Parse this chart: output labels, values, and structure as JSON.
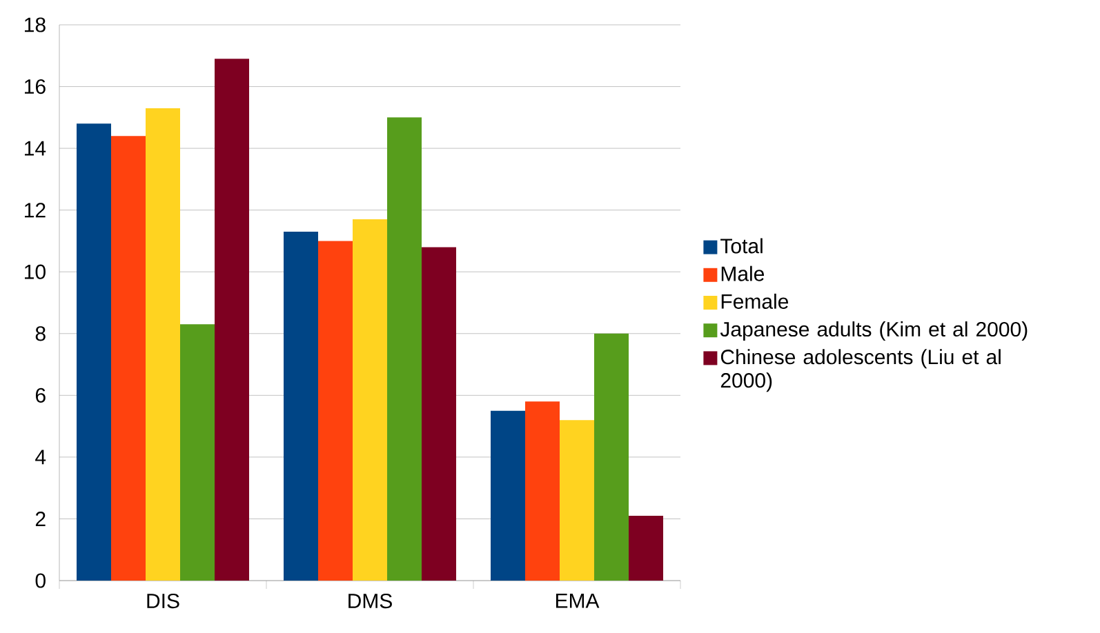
{
  "chart_data": {
    "type": "bar",
    "categories": [
      "DIS",
      "DMS",
      "EMA"
    ],
    "series": [
      {
        "name": "Total",
        "color": "#004586",
        "values": [
          14.8,
          11.3,
          5.5
        ]
      },
      {
        "name": "Male",
        "color": "#ff420e",
        "values": [
          14.4,
          11.0,
          5.8
        ]
      },
      {
        "name": "Female",
        "color": "#ffd320",
        "values": [
          15.3,
          11.7,
          5.2
        ]
      },
      {
        "name": "Japanese adults (Kim et al 2000)",
        "color": "#579d1c",
        "values": [
          8.3,
          15.0,
          8.0
        ]
      },
      {
        "name": "Chinese adolescents (Liu et al 2000)",
        "color": "#7e0021",
        "values": [
          16.9,
          10.8,
          2.1
        ]
      }
    ],
    "ylim": [
      0,
      18
    ],
    "yticks": [
      0,
      2,
      4,
      6,
      8,
      10,
      12,
      14,
      16,
      18
    ],
    "grid": "y",
    "legend": "right"
  }
}
